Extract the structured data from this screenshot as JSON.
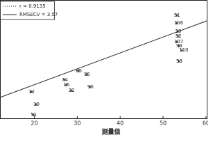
{
  "chart_data": {
    "type": "scatter",
    "xlabel": "测量值",
    "xlim": [
      12,
      60.5
    ],
    "ylim": [
      -1,
      74
    ],
    "xticks": [
      20,
      30,
      40,
      50,
      60
    ],
    "legend": [
      "r = 0.9135",
      "RMSECV = 3.57"
    ],
    "color": "#222222",
    "points": [
      {
        "label": "51",
        "x": 53.2,
        "y": 64.3
      },
      {
        "label": "106",
        "x": 53.2,
        "y": 59.4
      },
      {
        "label": "59",
        "x": 53.5,
        "y": 54.1
      },
      {
        "label": "52",
        "x": 53.5,
        "y": 51.1
      },
      {
        "label": "107",
        "x": 53.2,
        "y": 47.5
      },
      {
        "label": "95",
        "x": 53.7,
        "y": 44.9
      },
      {
        "label": "110",
        "x": 54.4,
        "y": 42.2
      },
      {
        "label": "53",
        "x": 53.7,
        "y": 35.2
      },
      {
        "label": "51",
        "x": 19.8,
        "y": 1.2
      },
      {
        "label": "10",
        "x": 20.4,
        "y": 7.8
      },
      {
        "label": "12",
        "x": 19.3,
        "y": 15.8
      },
      {
        "label": "74",
        "x": 27.0,
        "y": 23.3
      },
      {
        "label": "65",
        "x": 30.3,
        "y": 29.0
      },
      {
        "label": "55",
        "x": 32.2,
        "y": 26.8
      },
      {
        "label": "90",
        "x": 33.0,
        "y": 18.9
      },
      {
        "label": "32",
        "x": 28.6,
        "y": 16.6
      },
      {
        "label": "16",
        "x": 27.4,
        "y": 20.2
      }
    ]
  }
}
